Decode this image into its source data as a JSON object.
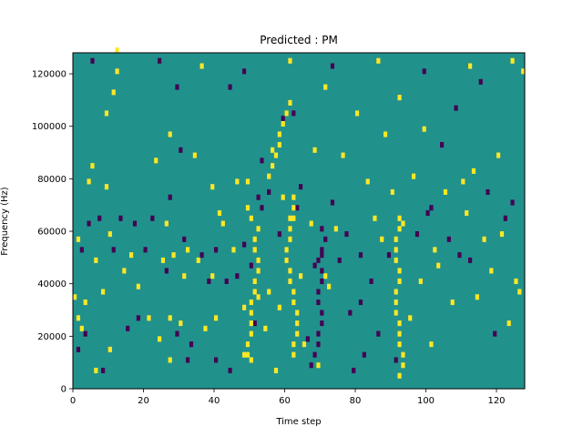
{
  "chart_data": {
    "type": "heatmap",
    "title": "Predicted : PM",
    "xlabel": "Time step",
    "ylabel": "Frequency (Hz)",
    "xlim": [
      0,
      128
    ],
    "ylim": [
      0,
      128000
    ],
    "x_ticks": [
      0,
      20,
      40,
      60,
      80,
      100,
      120
    ],
    "y_ticks": [
      0,
      20000,
      40000,
      60000,
      80000,
      100000,
      120000
    ],
    "y_tick_labels": [
      "0",
      "20000",
      "40000",
      "60000",
      "80000",
      "100000",
      "120000"
    ],
    "grid": false,
    "legend": "none",
    "colormap": "viridis",
    "levels": [
      -1,
      0,
      1
    ],
    "colors": {
      "-1": "#440154",
      "0": "#21918c",
      "1": "#fde725"
    },
    "background_value": 0,
    "cell_height_hz": 2000,
    "cells": [
      [
        0,
        17,
        1
      ],
      [
        1,
        28,
        1
      ],
      [
        1,
        13,
        1
      ],
      [
        1,
        7,
        -1
      ],
      [
        2,
        26,
        -1
      ],
      [
        2,
        11,
        1
      ],
      [
        3,
        16,
        1
      ],
      [
        3,
        10,
        -1
      ],
      [
        4,
        31,
        -1
      ],
      [
        4,
        39,
        1
      ],
      [
        5,
        42,
        1
      ],
      [
        6,
        24,
        1
      ],
      [
        6,
        3,
        1
      ],
      [
        7,
        32,
        -1
      ],
      [
        8,
        18,
        1
      ],
      [
        8,
        3,
        -1
      ],
      [
        9,
        38,
        1
      ],
      [
        9,
        52,
        1
      ],
      [
        10,
        7,
        1
      ],
      [
        10,
        29,
        1
      ],
      [
        11,
        26,
        -1
      ],
      [
        11,
        56,
        1
      ],
      [
        12,
        64,
        1
      ],
      [
        13,
        32,
        -1
      ],
      [
        14,
        22,
        1
      ],
      [
        15,
        11,
        -1
      ],
      [
        16,
        25,
        1
      ],
      [
        17,
        31,
        -1
      ],
      [
        18,
        13,
        -1
      ],
      [
        18,
        19,
        1
      ],
      [
        20,
        26,
        -1
      ],
      [
        21,
        13,
        1
      ],
      [
        22,
        32,
        -1
      ],
      [
        23,
        43,
        1
      ],
      [
        24,
        9,
        1
      ],
      [
        25,
        24,
        1
      ],
      [
        26,
        22,
        -1
      ],
      [
        26,
        31,
        1
      ],
      [
        27,
        5,
        1
      ],
      [
        27,
        13,
        1
      ],
      [
        27,
        36,
        -1
      ],
      [
        27,
        48,
        1
      ],
      [
        28,
        25,
        1
      ],
      [
        29,
        10,
        -1
      ],
      [
        29,
        57,
        -1
      ],
      [
        30,
        12,
        1
      ],
      [
        30,
        45,
        -1
      ],
      [
        31,
        28,
        -1
      ],
      [
        31,
        21,
        1
      ],
      [
        32,
        26,
        1
      ],
      [
        32,
        5,
        -1
      ],
      [
        33,
        8,
        -1
      ],
      [
        34,
        44,
        1
      ],
      [
        35,
        24,
        1
      ],
      [
        36,
        25,
        -1
      ],
      [
        37,
        11,
        1
      ],
      [
        38,
        20,
        -1
      ],
      [
        39,
        21,
        1
      ],
      [
        39,
        38,
        1
      ],
      [
        40,
        26,
        -1
      ],
      [
        40,
        13,
        1
      ],
      [
        40,
        5,
        -1
      ],
      [
        41,
        33,
        1
      ],
      [
        42,
        31,
        1
      ],
      [
        43,
        20,
        -1
      ],
      [
        44,
        3,
        -1
      ],
      [
        44,
        57,
        -1
      ],
      [
        45,
        26,
        1
      ],
      [
        46,
        21,
        -1
      ],
      [
        46,
        39,
        1
      ],
      [
        48,
        27,
        -1
      ],
      [
        48,
        15,
        1
      ],
      [
        49,
        39,
        1
      ],
      [
        50,
        23,
        -1
      ],
      [
        50,
        5,
        1
      ],
      [
        51,
        12,
        -1
      ],
      [
        52,
        17,
        1
      ],
      [
        52,
        36,
        -1
      ],
      [
        53,
        34,
        -1
      ],
      [
        53,
        43,
        -1
      ],
      [
        54,
        11,
        1
      ],
      [
        55,
        18,
        1
      ],
      [
        55,
        37,
        -1
      ],
      [
        56,
        45,
        1
      ],
      [
        57,
        3,
        1
      ],
      [
        58,
        29,
        -1
      ],
      [
        58,
        15,
        1
      ],
      [
        59,
        36,
        1
      ],
      [
        59,
        51,
        -1
      ],
      [
        60,
        24,
        -1
      ],
      [
        61,
        32,
        1
      ],
      [
        62,
        52,
        -1
      ],
      [
        63,
        34,
        -1
      ],
      [
        64,
        38,
        -1
      ],
      [
        64,
        21,
        1
      ],
      [
        65,
        8,
        1
      ],
      [
        66,
        9,
        -1
      ],
      [
        67,
        31,
        1
      ],
      [
        68,
        23,
        -1
      ],
      [
        68,
        45,
        1
      ],
      [
        69,
        4,
        1
      ],
      [
        70,
        25,
        -1
      ],
      [
        71,
        21,
        1
      ],
      [
        71,
        57,
        1
      ],
      [
        72,
        19,
        1
      ],
      [
        73,
        35,
        -1
      ],
      [
        74,
        30,
        1
      ],
      [
        75,
        24,
        -1
      ],
      [
        76,
        44,
        1
      ],
      [
        77,
        29,
        -1
      ],
      [
        78,
        14,
        -1
      ],
      [
        79,
        3,
        -1
      ],
      [
        80,
        52,
        1
      ],
      [
        81,
        16,
        -1
      ],
      [
        81,
        25,
        -1
      ],
      [
        82,
        6,
        -1
      ],
      [
        83,
        39,
        1
      ],
      [
        84,
        20,
        -1
      ],
      [
        85,
        32,
        1
      ],
      [
        86,
        10,
        -1
      ],
      [
        87,
        28,
        1
      ],
      [
        88,
        48,
        1
      ],
      [
        89,
        25,
        -1
      ],
      [
        90,
        37,
        1
      ],
      [
        91,
        5,
        -1
      ],
      [
        92,
        55,
        1
      ],
      [
        93,
        31,
        1
      ],
      [
        95,
        13,
        1
      ],
      [
        96,
        40,
        1
      ],
      [
        97,
        29,
        -1
      ],
      [
        98,
        20,
        1
      ],
      [
        99,
        49,
        1
      ],
      [
        100,
        33,
        -1
      ],
      [
        101,
        34,
        -1
      ],
      [
        101,
        8,
        1
      ],
      [
        102,
        26,
        1
      ],
      [
        103,
        23,
        1
      ],
      [
        104,
        46,
        -1
      ],
      [
        105,
        37,
        1
      ],
      [
        106,
        28,
        -1
      ],
      [
        107,
        16,
        1
      ],
      [
        108,
        53,
        -1
      ],
      [
        109,
        25,
        -1
      ],
      [
        110,
        39,
        1
      ],
      [
        111,
        33,
        1
      ],
      [
        112,
        24,
        -1
      ],
      [
        113,
        41,
        1
      ],
      [
        114,
        17,
        1
      ],
      [
        115,
        58,
        -1
      ],
      [
        116,
        28,
        1
      ],
      [
        117,
        37,
        -1
      ],
      [
        118,
        22,
        1
      ],
      [
        119,
        10,
        -1
      ],
      [
        120,
        44,
        1
      ],
      [
        121,
        29,
        1
      ],
      [
        122,
        32,
        -1
      ],
      [
        123,
        12,
        1
      ],
      [
        124,
        35,
        -1
      ],
      [
        125,
        20,
        1
      ],
      [
        126,
        18,
        1
      ],
      [
        127,
        60,
        1
      ],
      [
        124,
        62,
        1
      ],
      [
        112,
        61,
        1
      ],
      [
        99,
        60,
        -1
      ],
      [
        86,
        62,
        1
      ],
      [
        73,
        61,
        -1
      ],
      [
        61,
        62,
        1
      ],
      [
        48,
        60,
        -1
      ],
      [
        36,
        61,
        1
      ],
      [
        24,
        62,
        -1
      ],
      [
        12,
        60,
        1
      ],
      [
        5,
        62,
        -1
      ],
      [
        48,
        6,
        1
      ],
      [
        49,
        6,
        1
      ],
      [
        49,
        8,
        1
      ],
      [
        50,
        10,
        1
      ],
      [
        50,
        12,
        1
      ],
      [
        50,
        14,
        1
      ],
      [
        50,
        16,
        1
      ],
      [
        51,
        18,
        1
      ],
      [
        51,
        20,
        1
      ],
      [
        52,
        22,
        1
      ],
      [
        52,
        24,
        1
      ],
      [
        51,
        26,
        1
      ],
      [
        51,
        28,
        1
      ],
      [
        52,
        30,
        1
      ],
      [
        50,
        32,
        1
      ],
      [
        49,
        34,
        1
      ],
      [
        62,
        6,
        1
      ],
      [
        62,
        8,
        1
      ],
      [
        63,
        10,
        1
      ],
      [
        63,
        12,
        1
      ],
      [
        63,
        14,
        1
      ],
      [
        62,
        16,
        1
      ],
      [
        62,
        18,
        1
      ],
      [
        61,
        20,
        1
      ],
      [
        61,
        22,
        1
      ],
      [
        60,
        24,
        1
      ],
      [
        60,
        26,
        1
      ],
      [
        61,
        28,
        1
      ],
      [
        61,
        30,
        1
      ],
      [
        62,
        32,
        1
      ],
      [
        62,
        34,
        1
      ],
      [
        62,
        36,
        1
      ],
      [
        92,
        2,
        1
      ],
      [
        93,
        4,
        1
      ],
      [
        93,
        6,
        1
      ],
      [
        92,
        8,
        1
      ],
      [
        92,
        10,
        1
      ],
      [
        92,
        12,
        1
      ],
      [
        91,
        14,
        1
      ],
      [
        91,
        16,
        1
      ],
      [
        91,
        18,
        1
      ],
      [
        92,
        20,
        1
      ],
      [
        92,
        22,
        1
      ],
      [
        91,
        24,
        1
      ],
      [
        91,
        26,
        1
      ],
      [
        91,
        28,
        1
      ],
      [
        92,
        30,
        1
      ],
      [
        92,
        32,
        1
      ],
      [
        67,
        4,
        -1
      ],
      [
        68,
        6,
        -1
      ],
      [
        69,
        8,
        -1
      ],
      [
        69,
        10,
        -1
      ],
      [
        70,
        12,
        -1
      ],
      [
        70,
        14,
        -1
      ],
      [
        69,
        16,
        -1
      ],
      [
        69,
        18,
        -1
      ],
      [
        70,
        20,
        -1
      ],
      [
        70,
        22,
        -1
      ],
      [
        69,
        24,
        -1
      ],
      [
        70,
        26,
        -1
      ],
      [
        71,
        28,
        -1
      ],
      [
        70,
        30,
        -1
      ],
      [
        55,
        40,
        1
      ],
      [
        56,
        42,
        1
      ],
      [
        57,
        44,
        1
      ],
      [
        58,
        46,
        1
      ],
      [
        58,
        48,
        1
      ],
      [
        59,
        50,
        1
      ],
      [
        60,
        52,
        1
      ],
      [
        61,
        54,
        1
      ]
    ]
  }
}
